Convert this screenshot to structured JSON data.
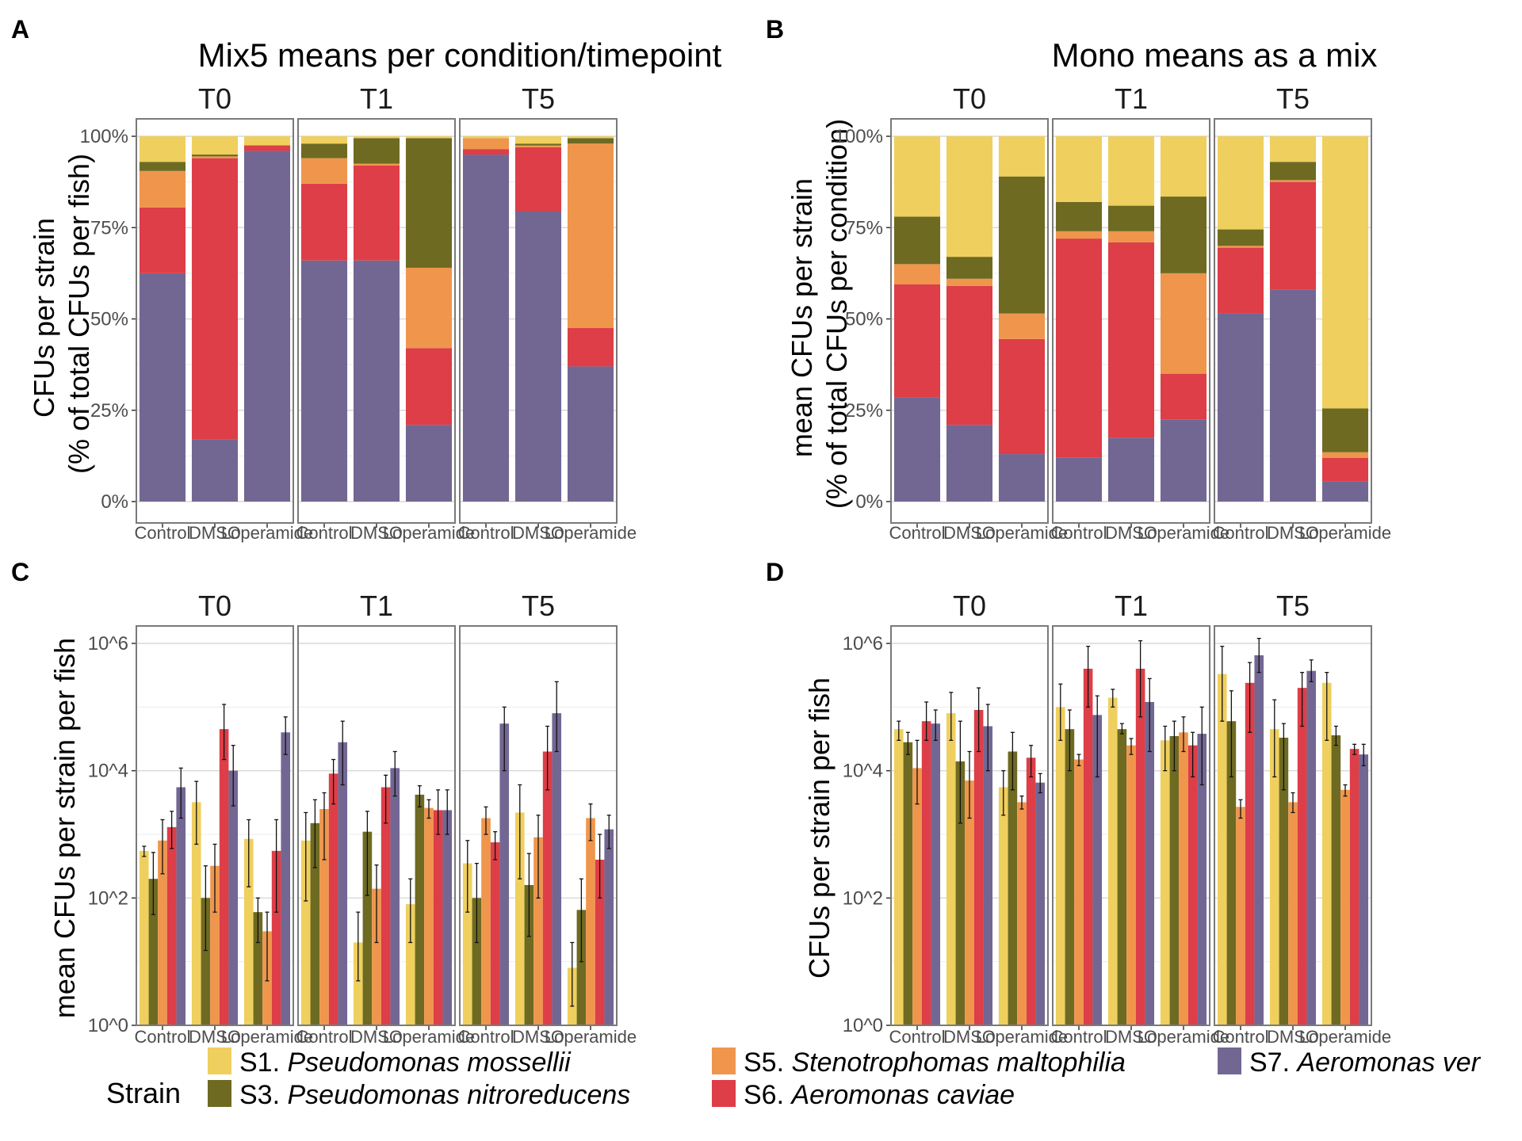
{
  "colors": {
    "S1": "#efcf5e",
    "S3": "#6e6a22",
    "S5": "#ef964c",
    "S6": "#dd3e47",
    "S7": "#726793"
  },
  "panels": {
    "A": {
      "label": "A",
      "title": "Mix5 means per condition/timepoint",
      "ylabel_lines": [
        "CFUs per strain",
        "(% of total CFUs per fish)"
      ]
    },
    "B": {
      "label": "B",
      "title": "Mono means as a mix",
      "ylabel_lines": [
        "mean CFUs per strain",
        "(% of total CFUs per condition)"
      ]
    },
    "C": {
      "label": "C",
      "title": "",
      "ylabel_lines": [
        "mean CFUs per strain per fish"
      ]
    },
    "D": {
      "label": "D",
      "title": "",
      "ylabel_lines": [
        "CFUs per strain per fish"
      ]
    }
  },
  "legend": {
    "title": "Strain",
    "items": [
      {
        "key": "S1",
        "prefix": "S1. ",
        "name": "Pseudomonas mossellii"
      },
      {
        "key": "S3",
        "prefix": "S3. ",
        "name": "Pseudomonas nitroreducens"
      },
      {
        "key": "S5",
        "prefix": "S5. ",
        "name": "Stenotrophomas maltophilia"
      },
      {
        "key": "S6",
        "prefix": "S6. ",
        "name": "Aeromonas caviae"
      },
      {
        "key": "S7",
        "prefix": "S7. ",
        "name": "Aeromonas ver"
      }
    ]
  },
  "chart_data": [
    {
      "panel": "A",
      "type": "bar",
      "stacked": true,
      "title": "Mix5 means per condition/timepoint",
      "ylabel": "CFUs per strain (% of total CFUs per fish)",
      "facets": [
        "T0",
        "T1",
        "T5"
      ],
      "categories": [
        "Control",
        "DMSO",
        "Loperamide"
      ],
      "yticks": [
        "0%",
        "25%",
        "50%",
        "75%",
        "100%"
      ],
      "ylim": [
        0,
        100
      ],
      "stack_order": [
        "S7",
        "S6",
        "S5",
        "S3",
        "S1"
      ],
      "values": {
        "T0": {
          "Control": {
            "S7": 62.5,
            "S6": 18,
            "S5": 10,
            "S3": 2.5,
            "S1": 7
          },
          "DMSO": {
            "S7": 17,
            "S6": 77,
            "S5": 0.5,
            "S3": 0.5,
            "S1": 5
          },
          "Loperamide": {
            "S7": 96,
            "S6": 1.5,
            "S5": 0,
            "S3": 0,
            "S1": 2.5
          }
        },
        "T1": {
          "Control": {
            "S7": 66,
            "S6": 21,
            "S5": 7,
            "S3": 4,
            "S1": 2
          },
          "DMSO": {
            "S7": 66,
            "S6": 26,
            "S5": 0.5,
            "S3": 7,
            "S1": 0.5
          },
          "Loperamide": {
            "S7": 21,
            "S6": 21,
            "S5": 22,
            "S3": 35.5,
            "S1": 0.5
          }
        },
        "T5": {
          "Control": {
            "S7": 95,
            "S6": 1.5,
            "S5": 3,
            "S3": 0,
            "S1": 0.5
          },
          "DMSO": {
            "S7": 79.5,
            "S6": 17.5,
            "S5": 0.5,
            "S3": 0.5,
            "S1": 2
          },
          "Loperamide": {
            "S7": 37,
            "S6": 10.5,
            "S5": 50.5,
            "S3": 1.5,
            "S1": 0.5
          }
        }
      }
    },
    {
      "panel": "B",
      "type": "bar",
      "stacked": true,
      "title": "Mono means as a mix",
      "ylabel": "mean CFUs per strain (% of total CFUs per condition)",
      "facets": [
        "T0",
        "T1",
        "T5"
      ],
      "categories": [
        "Control",
        "DMSO",
        "Loperamide"
      ],
      "yticks": [
        "0%",
        "25%",
        "50%",
        "75%",
        "100%"
      ],
      "ylim": [
        0,
        100
      ],
      "stack_order": [
        "S7",
        "S6",
        "S5",
        "S3",
        "S1"
      ],
      "values": {
        "T0": {
          "Control": {
            "S7": 28.5,
            "S6": 31,
            "S5": 5.5,
            "S3": 13,
            "S1": 22
          },
          "DMSO": {
            "S7": 21,
            "S6": 38,
            "S5": 2,
            "S3": 6,
            "S1": 33
          },
          "Loperamide": {
            "S7": 13,
            "S6": 31.5,
            "S5": 7,
            "S3": 37.5,
            "S1": 11
          }
        },
        "T1": {
          "Control": {
            "S7": 12,
            "S6": 60,
            "S5": 2,
            "S3": 8,
            "S1": 18
          },
          "DMSO": {
            "S7": 17.5,
            "S6": 53.5,
            "S5": 3,
            "S3": 7,
            "S1": 19
          },
          "Loperamide": {
            "S7": 22.5,
            "S6": 12.5,
            "S5": 27.5,
            "S3": 21,
            "S1": 16.5
          }
        },
        "T5": {
          "Control": {
            "S7": 51.5,
            "S6": 18,
            "S5": 0.5,
            "S3": 4.5,
            "S1": 25.5
          },
          "DMSO": {
            "S7": 58,
            "S6": 29.5,
            "S5": 0.5,
            "S3": 5,
            "S1": 7
          },
          "Loperamide": {
            "S7": 5.5,
            "S6": 6.5,
            "S5": 1.5,
            "S3": 12,
            "S1": 74.5
          }
        }
      }
    },
    {
      "panel": "C",
      "type": "bar",
      "grouped": true,
      "yscale": "log10",
      "ylabel": "mean CFUs per strain per fish",
      "facets": [
        "T0",
        "T1",
        "T5"
      ],
      "categories": [
        "Control",
        "DMSO",
        "Loperamide"
      ],
      "yticks": [
        "10^0",
        "10^2",
        "10^4",
        "10^6"
      ],
      "ylim": [
        1,
        1000000
      ],
      "series_order": [
        "S1",
        "S3",
        "S5",
        "S6",
        "S7"
      ],
      "values": {
        "T0": {
          "Control": {
            "S1": [
              550,
              450,
              650
            ],
            "S3": [
              200,
              55,
              520
            ],
            "S5": [
              800,
              240,
              1700
            ],
            "S6": [
              1300,
              600,
              2300
            ],
            "S7": [
              5500,
              1800,
              11000
            ]
          },
          "DMSO": {
            "S1": [
              3200,
              700,
              6800
            ],
            "S3": [
              100,
              15,
              320
            ],
            "S5": [
              320,
              60,
              700
            ],
            "S6": [
              45000,
              15000,
              110000
            ],
            "S7": [
              10000,
              2800,
              25000
            ]
          },
          "Loperamide": {
            "S1": [
              850,
              150,
              1700
            ],
            "S3": [
              60,
              20,
              100
            ],
            "S5": [
              30,
              5,
              60
            ],
            "S6": [
              550,
              60,
              1700
            ],
            "S7": [
              40000,
              18000,
              70000
            ]
          }
        },
        "T1": {
          "Control": {
            "S1": [
              800,
              90,
              2200
            ],
            "S3": [
              1500,
              300,
              3500
            ],
            "S5": [
              2500,
              400,
              4500
            ],
            "S6": [
              9000,
              3000,
              15000
            ],
            "S7": [
              28000,
              6000,
              60000
            ]
          },
          "DMSO": {
            "S1": [
              20,
              5,
              60
            ],
            "S3": [
              1100,
              110,
              2300
            ],
            "S5": [
              140,
              20,
              330
            ],
            "S6": [
              5500,
              1500,
              8500
            ],
            "S7": [
              11000,
              4000,
              20000
            ]
          },
          "Loperamide": {
            "S1": [
              80,
              20,
              200
            ],
            "S3": [
              4200,
              2700,
              5800
            ],
            "S5": [
              2600,
              1800,
              3500
            ],
            "S6": [
              2400,
              1000,
              5000
            ],
            "S7": [
              2400,
              1000,
              5000
            ]
          }
        },
        "T5": {
          "Control": {
            "S1": [
              350,
              60,
              800
            ],
            "S3": [
              100,
              20,
              350
            ],
            "S5": [
              1800,
              1000,
              2700
            ],
            "S6": [
              750,
              400,
              1100
            ],
            "S7": [
              55000,
              10000,
              100000
            ]
          },
          "DMSO": {
            "S1": [
              2200,
              200,
              6000
            ],
            "S3": [
              160,
              25,
              500
            ],
            "S5": [
              900,
              100,
              2000
            ],
            "S6": [
              20000,
              5000,
              50000
            ],
            "S7": [
              80000,
              20000,
              250000
            ]
          },
          "Loperamide": {
            "S1": [
              8,
              2,
              20
            ],
            "S3": [
              65,
              10,
              200
            ],
            "S5": [
              1800,
              800,
              3000
            ],
            "S6": [
              400,
              100,
              1000
            ],
            "S7": [
              1200,
              600,
              2000
            ]
          }
        }
      }
    },
    {
      "panel": "D",
      "type": "bar",
      "grouped": true,
      "yscale": "log10",
      "ylabel": "CFUs per strain per fish",
      "facets": [
        "T0",
        "T1",
        "T5"
      ],
      "categories": [
        "Control",
        "DMSO",
        "Loperamide"
      ],
      "yticks": [
        "10^0",
        "10^2",
        "10^4",
        "10^6"
      ],
      "ylim": [
        1,
        1000000
      ],
      "series_order": [
        "S1",
        "S3",
        "S5",
        "S6",
        "S7"
      ],
      "values": {
        "T0": {
          "Control": {
            "S1": [
              45000,
              30000,
              60000
            ],
            "S3": [
              28000,
              18000,
              40000
            ],
            "S5": [
              11000,
              3000,
              30000
            ],
            "S6": [
              60000,
              30000,
              120000
            ],
            "S7": [
              55000,
              30000,
              90000
            ]
          },
          "DMSO": {
            "S1": [
              80000,
              30000,
              170000
            ],
            "S3": [
              14000,
              1500,
              60000
            ],
            "S5": [
              7000,
              1800,
              20000
            ],
            "S6": [
              90000,
              20000,
              200000
            ],
            "S7": [
              50000,
              10000,
              110000
            ]
          },
          "Loperamide": {
            "S1": [
              5500,
              2000,
              10000
            ],
            "S3": [
              20000,
              5000,
              40000
            ],
            "S5": [
              3200,
              2500,
              4000
            ],
            "S6": [
              16000,
              8000,
              25000
            ],
            "S7": [
              6500,
              4500,
              9000
            ]
          }
        },
        "T1": {
          "Control": {
            "S1": [
              100000,
              30000,
              230000
            ],
            "S3": [
              45000,
              10000,
              90000
            ],
            "S5": [
              15000,
              12000,
              18000
            ],
            "S6": [
              400000,
              100000,
              900000
            ],
            "S7": [
              75000,
              8000,
              150000
            ]
          },
          "DMSO": {
            "S1": [
              140000,
              100000,
              190000
            ],
            "S3": [
              45000,
              38000,
              55000
            ],
            "S5": [
              25000,
              18000,
              32000
            ],
            "S6": [
              400000,
              70000,
              1100000
            ],
            "S7": [
              120000,
              20000,
              280000
            ]
          },
          "Loperamide": {
            "S1": [
              30000,
              10000,
              50000
            ],
            "S3": [
              35000,
              10000,
              60000
            ],
            "S5": [
              40000,
              20000,
              70000
            ],
            "S6": [
              25000,
              8000,
              40000
            ],
            "S7": [
              38000,
              6000,
              100000
            ]
          }
        },
        "T5": {
          "Control": {
            "S1": [
              330000,
              60000,
              900000
            ],
            "S3": [
              60000,
              8000,
              180000
            ],
            "S5": [
              2700,
              1800,
              3500
            ],
            "S6": [
              240000,
              40000,
              500000
            ],
            "S7": [
              650000,
              350000,
              1200000
            ]
          },
          "DMSO": {
            "S1": [
              45000,
              8000,
              130000
            ],
            "S3": [
              33000,
              5000,
              55000
            ],
            "S5": [
              3200,
              2200,
              4500
            ],
            "S6": [
              200000,
              50000,
              350000
            ],
            "S7": [
              370000,
              250000,
              550000
            ]
          },
          "Loperamide": {
            "S1": [
              240000,
              30000,
              350000
            ],
            "S3": [
              36000,
              25000,
              50000
            ],
            "S5": [
              5000,
              4000,
              6000
            ],
            "S6": [
              22000,
              18000,
              26000
            ],
            "S7": [
              18000,
              12000,
              26000
            ]
          }
        }
      }
    }
  ]
}
